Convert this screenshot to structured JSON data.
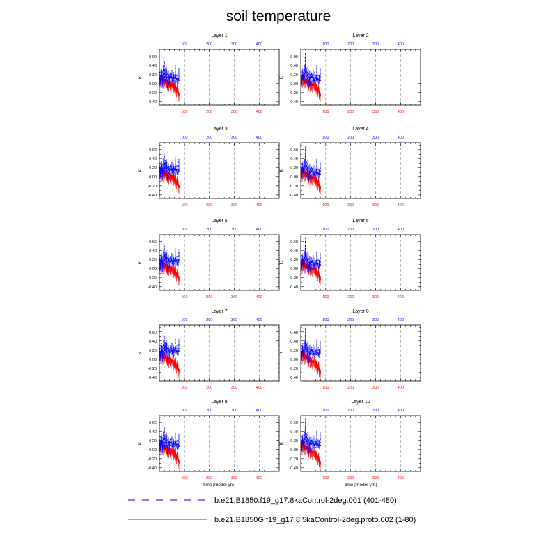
{
  "title": "soil temperature",
  "ylabel": "K",
  "xlabel": "time [model yrs]",
  "colors": {
    "blue": "#0000ff",
    "red": "#ff0000",
    "grid": "#8a8a8a",
    "axis": "#000000"
  },
  "legend": [
    {
      "name": "b.e21.B1850.f19_g17.8kaControl-2deg.001 (401-480)",
      "color": "#0000ff",
      "style": "dashed"
    },
    {
      "name": "b.e21.B1850G.f19_g17.8.5kaControl-2deg.proto.002 (1-80)",
      "color": "#ff0000",
      "style": "solid"
    }
  ],
  "chart_data": {
    "type": "line",
    "ylim": [
      -0.48,
      0.75
    ],
    "yticks": [
      -0.4,
      -0.2,
      0.0,
      0.2,
      0.4,
      0.6
    ],
    "ytick_labels": [
      "-0.40",
      "-0.20",
      "0.00",
      "0.20",
      "0.40",
      "0.60"
    ],
    "xlim": [
      0,
      480
    ],
    "xticks": [
      100,
      200,
      300,
      400
    ],
    "xtick_labels": [
      "100",
      "200",
      "300",
      "400"
    ],
    "grid": "dashed vertical lines at x ticks",
    "legend_position": "bottom",
    "panels": [
      {
        "name": "Layer 1",
        "blue_end": 0.05,
        "red_end": -0.28
      },
      {
        "name": "Layer 2",
        "blue_end": 0.05,
        "red_end": -0.28
      },
      {
        "name": "Layer 3",
        "blue_end": 0.1,
        "red_end": -0.25
      },
      {
        "name": "Layer 4",
        "blue_end": 0.03,
        "red_end": -0.28
      },
      {
        "name": "Layer 5",
        "blue_end": 0.12,
        "red_end": -0.26
      },
      {
        "name": "Layer 6",
        "blue_end": 0.05,
        "red_end": -0.25
      },
      {
        "name": "Layer 7",
        "blue_end": 0.15,
        "red_end": -0.3
      },
      {
        "name": "Layer 8",
        "blue_end": 0.1,
        "red_end": -0.32
      },
      {
        "name": "Layer 9",
        "blue_end": 0.05,
        "red_end": -0.3
      },
      {
        "name": "Layer 10",
        "blue_end": 0.08,
        "red_end": -0.33
      }
    ],
    "series": [
      {
        "name": "b.e21.B1850.f19_g17.8kaControl-2deg.001 (401-480)",
        "x": [
          1,
          2,
          3,
          4,
          5,
          6,
          7,
          8,
          9,
          10,
          11,
          12,
          13,
          14,
          15,
          16,
          17,
          18,
          19,
          20,
          21,
          22,
          23,
          24,
          25,
          26,
          27,
          28,
          29,
          30,
          31,
          32,
          33,
          34,
          35,
          36,
          37,
          38,
          39,
          40,
          41,
          42,
          43,
          44,
          45,
          46,
          47,
          48,
          49,
          50,
          51,
          52,
          53,
          54,
          55,
          56,
          57,
          58,
          59,
          60,
          61,
          62,
          63,
          64,
          65,
          66,
          67,
          68,
          69,
          70,
          71,
          72,
          73,
          74,
          75,
          76,
          77,
          78,
          79,
          80
        ],
        "values": [
          0.1,
          0.25,
          0.05,
          0.18,
          -0.05,
          0.3,
          0.12,
          0.35,
          0.08,
          0.2,
          0.02,
          0.28,
          -0.08,
          0.15,
          0.22,
          0.4,
          0.1,
          0.68,
          0.2,
          0.5,
          0.05,
          0.3,
          0.15,
          0.35,
          0.0,
          0.25,
          0.1,
          0.38,
          0.05,
          0.32,
          0.18,
          0.22,
          -0.1,
          0.15,
          0.05,
          0.28,
          -0.05,
          0.2,
          0.1,
          0.18,
          0.0,
          0.22,
          0.08,
          0.25,
          0.12,
          0.2,
          -0.02,
          0.18,
          0.1,
          0.3,
          0.05,
          0.15,
          0.0,
          0.1,
          0.05,
          0.25,
          -0.05,
          0.2,
          0.1,
          0.15,
          0.0,
          0.18,
          0.05,
          0.4,
          0.1,
          0.2,
          0.02,
          0.12,
          0.08,
          0.22,
          0.0,
          0.1,
          0.05,
          0.18,
          -0.02,
          0.12,
          0.05,
          0.35,
          0.1,
          0.05
        ]
      },
      {
        "name": "b.e21.B1850G.f19_g17.8.5kaControl-2deg.proto.002 (1-80)",
        "x": [
          1,
          2,
          3,
          4,
          5,
          6,
          7,
          8,
          9,
          10,
          11,
          12,
          13,
          14,
          15,
          16,
          17,
          18,
          19,
          20,
          21,
          22,
          23,
          24,
          25,
          26,
          27,
          28,
          29,
          30,
          31,
          32,
          33,
          34,
          35,
          36,
          37,
          38,
          39,
          40,
          41,
          42,
          43,
          44,
          45,
          46,
          47,
          48,
          49,
          50,
          51,
          52,
          53,
          54,
          55,
          56,
          57,
          58,
          59,
          60,
          61,
          62,
          63,
          64,
          65,
          66,
          67,
          68,
          69,
          70,
          71,
          72,
          73,
          74,
          75,
          76,
          77,
          78,
          79,
          80
        ],
        "values": [
          0.05,
          -0.05,
          0.15,
          0.0,
          0.1,
          -0.1,
          0.2,
          0.05,
          0.25,
          -0.05,
          0.1,
          0.0,
          0.18,
          -0.12,
          0.05,
          0.2,
          0.0,
          0.12,
          -0.1,
          0.08,
          0.15,
          -0.05,
          0.1,
          0.0,
          0.2,
          -0.08,
          0.05,
          0.12,
          -0.1,
          0.02,
          0.08,
          -0.15,
          0.0,
          0.1,
          -0.05,
          0.05,
          -0.18,
          0.0,
          0.05,
          -0.1,
          0.08,
          -0.02,
          -0.15,
          0.05,
          -0.05,
          0.0,
          -0.2,
          0.02,
          -0.08,
          0.05,
          -0.12,
          0.0,
          -0.05,
          0.1,
          -0.15,
          -0.05,
          0.0,
          -0.22,
          -0.1,
          0.02,
          -0.18,
          -0.05,
          0.0,
          -0.25,
          -0.1,
          0.05,
          -0.2,
          -0.08,
          -0.3,
          -0.12,
          -0.02,
          -0.22,
          -0.15,
          -0.35,
          -0.1,
          -0.25,
          -0.18,
          -0.4,
          -0.2,
          -0.28
        ]
      }
    ]
  }
}
